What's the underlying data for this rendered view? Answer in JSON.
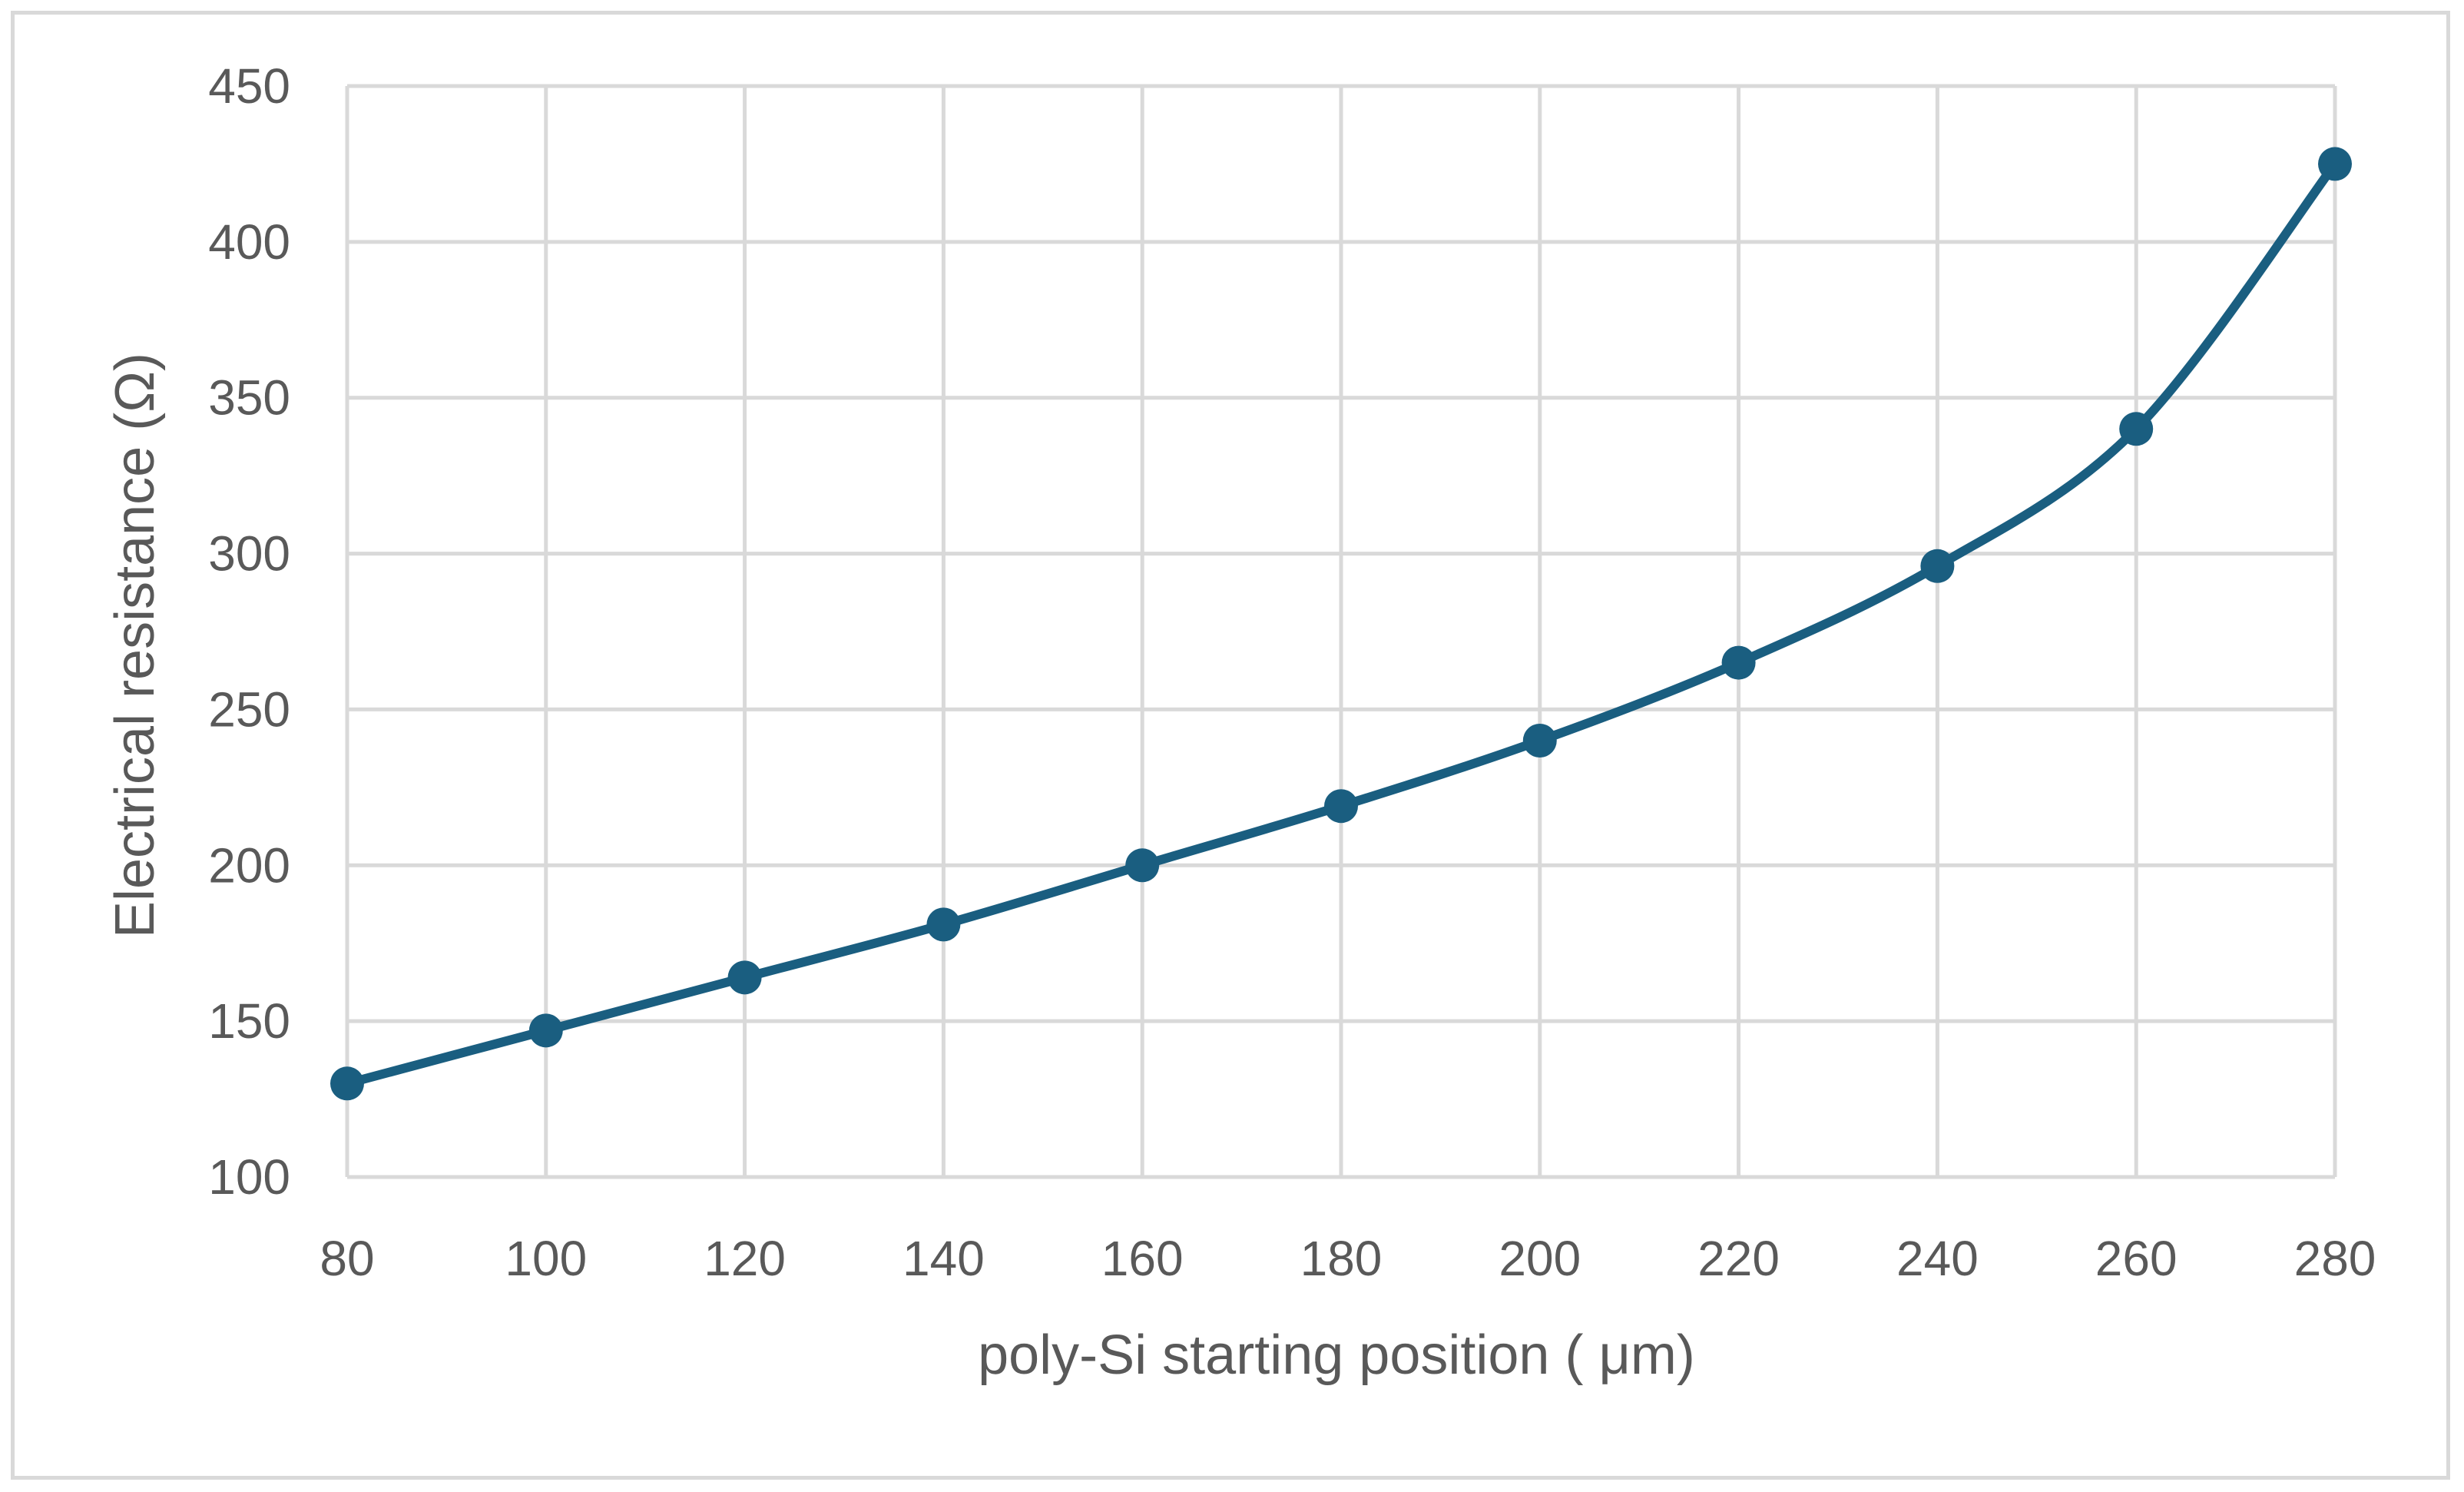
{
  "chart_data": {
    "type": "line",
    "title": "",
    "xlabel": "poly-Si starting position ( μm)",
    "ylabel": "Electrical resistance (Ω)",
    "x": [
      80,
      100,
      120,
      140,
      160,
      180,
      200,
      220,
      240,
      260,
      280
    ],
    "series": [
      {
        "name": "Electrical resistance",
        "values": [
          130,
          147,
          164,
          181,
          200,
          219,
          240,
          265,
          296,
          340,
          425
        ]
      }
    ],
    "xlim": [
      80,
      280
    ],
    "ylim": [
      100,
      450
    ],
    "xticks": [
      "80",
      "100",
      "120",
      "140",
      "160",
      "180",
      "200",
      "220",
      "240",
      "260",
      "280"
    ],
    "yticks": [
      "100",
      "150",
      "200",
      "250",
      "300",
      "350",
      "400",
      "450"
    ],
    "grid": true,
    "line_color": "#1a5e80",
    "grid_color": "#d9d9d9",
    "text_color": "#595959"
  }
}
